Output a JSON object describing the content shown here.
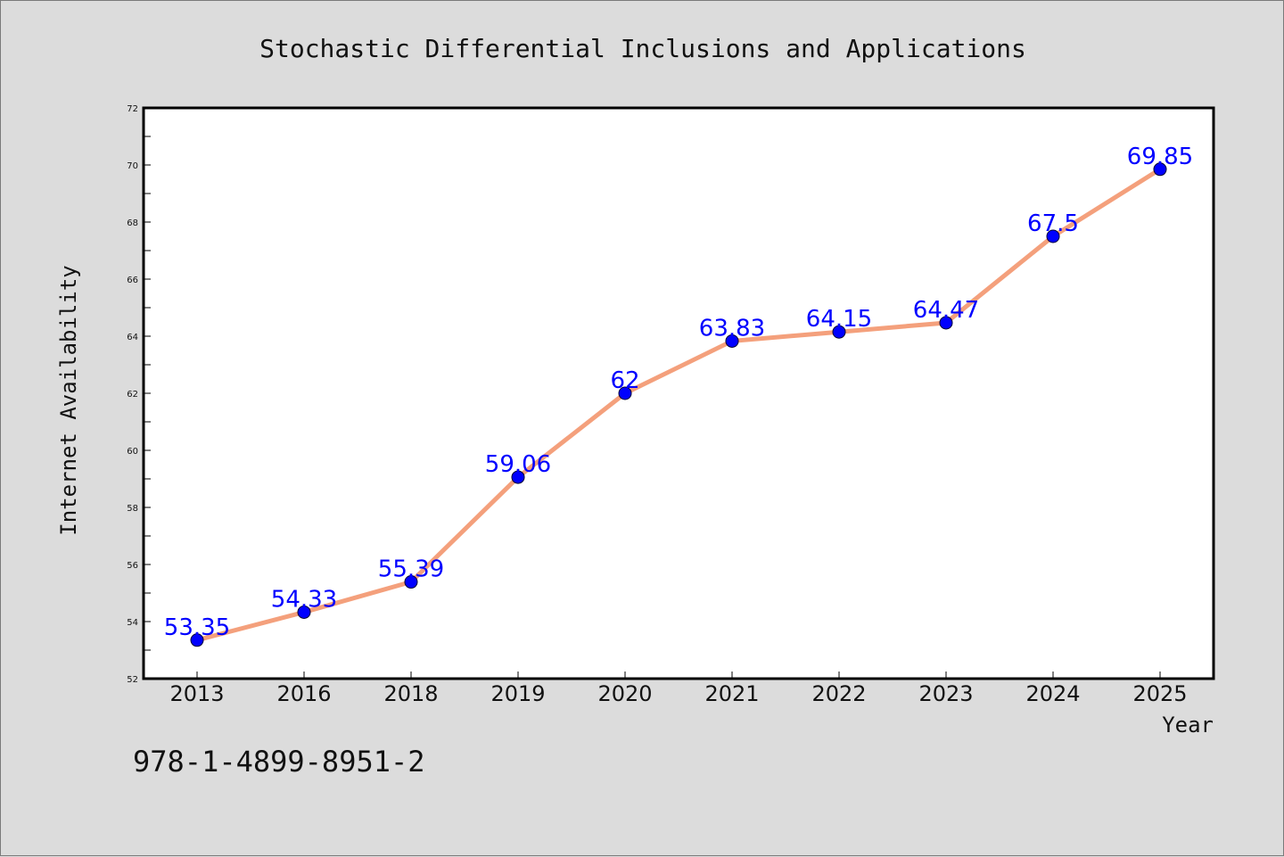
{
  "isbn": "978-1-4899-8951-2",
  "colors": {
    "background": "#dcdcdc",
    "plot_background": "#ffffff",
    "line": "#f4a07c",
    "marker": "#0000ff",
    "label": "#0000ff",
    "frame": "#000000"
  },
  "chart_data": {
    "type": "line",
    "title": "Stochastic Differential Inclusions and Applications",
    "xlabel": "Year",
    "ylabel": "Internet Availability",
    "categories": [
      "2013",
      "2016",
      "2018",
      "2019",
      "2020",
      "2021",
      "2022",
      "2023",
      "2024",
      "2025"
    ],
    "values": [
      53.35,
      54.33,
      55.39,
      59.06,
      62,
      63.83,
      64.15,
      64.47,
      67.5,
      69.85
    ],
    "data_labels": [
      "53.35",
      "54.33",
      "55.39",
      "59.06",
      "62",
      "63.83",
      "64.15",
      "64.47",
      "67.5",
      "69.85"
    ],
    "ylim": [
      52,
      72
    ],
    "yticks": [
      52,
      54,
      56,
      58,
      60,
      62,
      64,
      66,
      68,
      70,
      72
    ],
    "ytick_labels": [
      "52",
      "54",
      "56",
      "58",
      "60",
      "62",
      "64",
      "66",
      "68",
      "70",
      "72"
    ],
    "grid": false,
    "legend": "none"
  }
}
